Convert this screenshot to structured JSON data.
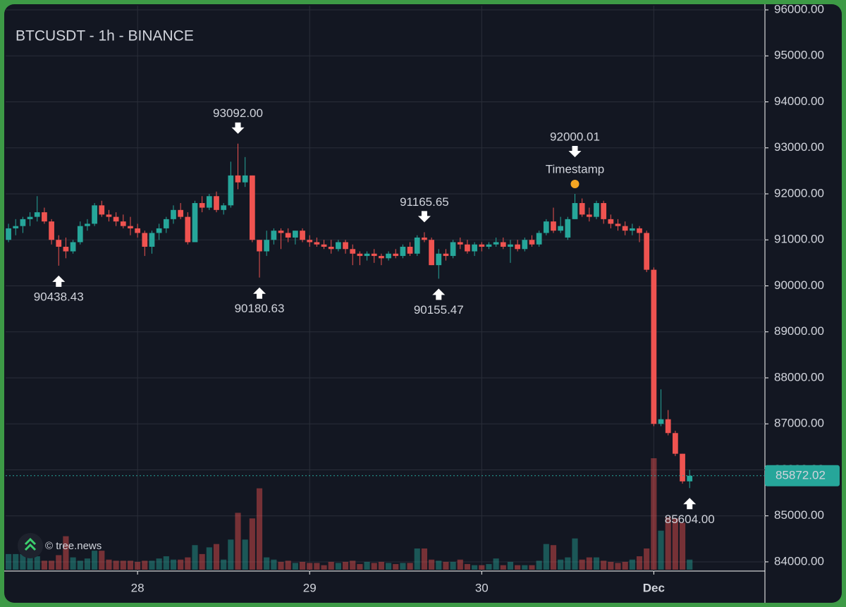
{
  "chart_data": {
    "type": "candlestick",
    "title": "BTCUSDT - 1h - BINANCE",
    "watermark": "© tree.news",
    "up_color": "#26a69a",
    "down_color": "#ef5350",
    "grid": true,
    "xlim": [
      -0.4,
      105.5
    ],
    "ylim": [
      83800,
      96092
    ],
    "xticks": [
      {
        "value": 18,
        "label": "28"
      },
      {
        "value": 42,
        "label": "29"
      },
      {
        "value": 66,
        "label": "30"
      },
      {
        "value": 90,
        "label": "Dec"
      }
    ],
    "yticks": [
      {
        "value": 84000,
        "label": "84000.00"
      },
      {
        "value": 85000,
        "label": "85000.00"
      },
      {
        "value": 86000,
        "label": "86000.00"
      },
      {
        "value": 87000,
        "label": "87000.00"
      },
      {
        "value": 88000,
        "label": "88000.00"
      },
      {
        "value": 89000,
        "label": "89000.00"
      },
      {
        "value": 90000,
        "label": "90000.00"
      },
      {
        "value": 91000,
        "label": "91000.00"
      },
      {
        "value": 92000,
        "label": "92000.00"
      },
      {
        "value": 93000,
        "label": "93000.00"
      },
      {
        "value": 94000,
        "label": "94000.00"
      },
      {
        "value": 95000,
        "label": "95000.00"
      },
      {
        "value": 96000,
        "label": "96000.00"
      }
    ],
    "last_price": {
      "value": 85872.02,
      "label": "85872.02",
      "color": "#26a69a"
    },
    "ohlc": [
      [
        91000,
        91350,
        90950,
        91250
      ],
      [
        91250,
        91450,
        91100,
        91300
      ],
      [
        91300,
        91500,
        91150,
        91450
      ],
      [
        91450,
        91600,
        91300,
        91500
      ],
      [
        91500,
        91950,
        91400,
        91600
      ],
      [
        91600,
        91700,
        91350,
        91400
      ],
      [
        91400,
        91450,
        90900,
        91000
      ],
      [
        91000,
        91100,
        90438.43,
        90850
      ],
      [
        90850,
        91050,
        90600,
        90750
      ],
      [
        90750,
        91000,
        90700,
        90950
      ],
      [
        90950,
        91400,
        90900,
        91300
      ],
      [
        91300,
        91450,
        91200,
        91350
      ],
      [
        91350,
        91800,
        91300,
        91750
      ],
      [
        91750,
        91850,
        91500,
        91550
      ],
      [
        91550,
        91650,
        91400,
        91500
      ],
      [
        91500,
        91600,
        91300,
        91400
      ],
      [
        91400,
        91550,
        91250,
        91300
      ],
      [
        91300,
        91500,
        91100,
        91250
      ],
      [
        91250,
        91350,
        91050,
        91150
      ],
      [
        91150,
        91200,
        90650,
        90850
      ],
      [
        90850,
        91200,
        90700,
        91150
      ],
      [
        91150,
        91350,
        91000,
        91250
      ],
      [
        91250,
        91500,
        91150,
        91450
      ],
      [
        91450,
        91750,
        91350,
        91650
      ],
      [
        91650,
        91800,
        91450,
        91500
      ],
      [
        91500,
        91600,
        90900,
        90950
      ],
      [
        90950,
        91850,
        90950,
        91800
      ],
      [
        91800,
        91950,
        91600,
        91700
      ],
      [
        91700,
        92000,
        91650,
        91950
      ],
      [
        91950,
        92050,
        91600,
        91650
      ],
      [
        91650,
        91800,
        91550,
        91750
      ],
      [
        91750,
        92700,
        91700,
        92400
      ],
      [
        92400,
        93092,
        92100,
        92250
      ],
      [
        92250,
        92800,
        92150,
        92400
      ],
      [
        92400,
        92400,
        90950,
        91000
      ],
      [
        91000,
        91000,
        90180.63,
        90750
      ],
      [
        90750,
        91200,
        90650,
        91000
      ],
      [
        91000,
        91250,
        90900,
        91200
      ],
      [
        91200,
        91250,
        90800,
        91150
      ],
      [
        91150,
        91250,
        90950,
        91050
      ],
      [
        91050,
        91200,
        90900,
        91200
      ],
      [
        91200,
        91250,
        90950,
        91000
      ],
      [
        91000,
        91100,
        90850,
        90950
      ],
      [
        90950,
        91050,
        90850,
        90900
      ],
      [
        90900,
        91000,
        90800,
        90850
      ],
      [
        90850,
        91000,
        90700,
        90800
      ],
      [
        90800,
        91000,
        90750,
        90950
      ],
      [
        90950,
        91000,
        90700,
        90800
      ],
      [
        90800,
        90900,
        90450,
        90700
      ],
      [
        90700,
        90750,
        90450,
        90650
      ],
      [
        90650,
        90750,
        90550,
        90700
      ],
      [
        90700,
        90800,
        90500,
        90650
      ],
      [
        90650,
        90700,
        90450,
        90600
      ],
      [
        90600,
        90750,
        90550,
        90700
      ],
      [
        90700,
        90800,
        90600,
        90650
      ],
      [
        90650,
        90900,
        90600,
        90850
      ],
      [
        90850,
        90950,
        90650,
        90700
      ],
      [
        90700,
        91100,
        90650,
        91050
      ],
      [
        91050,
        91165.65,
        90950,
        91000
      ],
      [
        91000,
        91050,
        90450,
        90450
      ],
      [
        90450,
        90800,
        90155.47,
        90700
      ],
      [
        90700,
        90800,
        90550,
        90650
      ],
      [
        90650,
        91000,
        90600,
        90950
      ],
      [
        90950,
        91050,
        90800,
        90900
      ],
      [
        90900,
        91000,
        90700,
        90750
      ],
      [
        90750,
        90950,
        90650,
        90900
      ],
      [
        90900,
        90950,
        90750,
        90850
      ],
      [
        90850,
        90950,
        90800,
        90900
      ],
      [
        90900,
        91050,
        90850,
        90950
      ],
      [
        90950,
        91050,
        90800,
        90850
      ],
      [
        90850,
        91000,
        90500,
        90900
      ],
      [
        90900,
        91000,
        90750,
        90800
      ],
      [
        90800,
        91050,
        90750,
        91000
      ],
      [
        91000,
        91100,
        90850,
        90900
      ],
      [
        90900,
        91200,
        90850,
        91150
      ],
      [
        91150,
        91450,
        91100,
        91400
      ],
      [
        91400,
        91700,
        91150,
        91200
      ],
      [
        91200,
        91500,
        91150,
        91300
      ],
      [
        91050,
        91500,
        91000,
        91450
      ],
      [
        91450,
        92000.01,
        91450,
        91800
      ],
      [
        91800,
        91900,
        91500,
        91550
      ],
      [
        91550,
        91700,
        91400,
        91500
      ],
      [
        91500,
        91850,
        91450,
        91800
      ],
      [
        91800,
        91850,
        91350,
        91450
      ],
      [
        91450,
        91550,
        91250,
        91350
      ],
      [
        91350,
        91450,
        91200,
        91300
      ],
      [
        91300,
        91400,
        91100,
        91200
      ],
      [
        91200,
        91350,
        91100,
        91250
      ],
      [
        91250,
        91300,
        90950,
        91150
      ],
      [
        91150,
        91200,
        90300,
        90350
      ],
      [
        90350,
        90400,
        86950,
        87000
      ],
      [
        87000,
        87750,
        86950,
        87100
      ],
      [
        87100,
        87300,
        86750,
        86800
      ],
      [
        86800,
        86850,
        86300,
        86350
      ],
      [
        86350,
        86350,
        85700,
        85750
      ],
      [
        85750,
        86000,
        85604,
        85872.02
      ]
    ],
    "volume": [
      14,
      14,
      14,
      12,
      12,
      8,
      8,
      13,
      30,
      11,
      8,
      10,
      17,
      17,
      9,
      8,
      8,
      8,
      7,
      8,
      8,
      10,
      12,
      9,
      9,
      11,
      22,
      14,
      20,
      23,
      9,
      27,
      51,
      27,
      46,
      73,
      11,
      9,
      7,
      8,
      6,
      7,
      6,
      6,
      4,
      7,
      6,
      7,
      8,
      5,
      7,
      6,
      7,
      6,
      5,
      6,
      6,
      19,
      19,
      9,
      8,
      7,
      7,
      9,
      5,
      4,
      4,
      5,
      10,
      4,
      7,
      4,
      4,
      4,
      8,
      23,
      22,
      9,
      11,
      28,
      9,
      11,
      11,
      8,
      7,
      6,
      7,
      9,
      12,
      19,
      100,
      35,
      47,
      46,
      42,
      9
    ],
    "annotations": [
      {
        "value": 90438.43,
        "label": "90438.43",
        "index": 7,
        "position": "below"
      },
      {
        "value": 93092,
        "label": "93092.00",
        "index": 32,
        "position": "above"
      },
      {
        "value": 90180.63,
        "label": "90180.63",
        "index": 35,
        "position": "below"
      },
      {
        "value": 91165.65,
        "label": "91165.65",
        "index": 58,
        "position": "above"
      },
      {
        "value": 90155.47,
        "label": "90155.47",
        "index": 60,
        "position": "below"
      },
      {
        "value": 92000.01,
        "label": "92000.01",
        "index": 79,
        "position": "above",
        "note": "Timestamp",
        "note_color": "#f5a623"
      },
      {
        "value": 85604,
        "label": "85604.00",
        "index": 95,
        "position": "below"
      }
    ]
  }
}
